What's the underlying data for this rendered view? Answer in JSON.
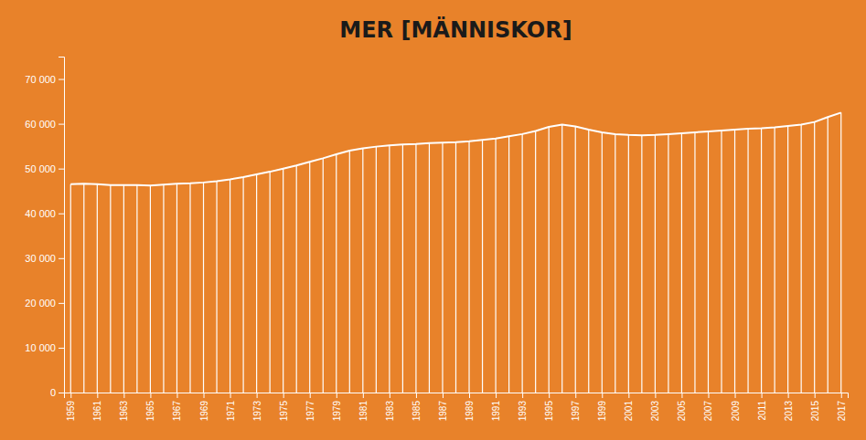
{
  "chart_data": {
    "type": "stem",
    "title": "MER [MÄNNISKOR]",
    "color": "#FFFFFF",
    "x": [
      1959,
      1960,
      1961,
      1962,
      1963,
      1964,
      1965,
      1966,
      1967,
      1968,
      1969,
      1970,
      1971,
      1972,
      1973,
      1974,
      1975,
      1976,
      1977,
      1978,
      1979,
      1980,
      1981,
      1982,
      1983,
      1984,
      1985,
      1986,
      1987,
      1988,
      1989,
      1990,
      1991,
      1992,
      1993,
      1994,
      1995,
      1996,
      1997,
      1998,
      1999,
      2000,
      2001,
      2002,
      2003,
      2004,
      2005,
      2006,
      2007,
      2008,
      2009,
      2010,
      2011,
      2012,
      2013,
      2014,
      2015,
      2016,
      2017
    ],
    "values": [
      46500,
      46600,
      46500,
      46300,
      46300,
      46300,
      46200,
      46400,
      46600,
      46700,
      46900,
      47200,
      47600,
      48100,
      48700,
      49300,
      50000,
      50700,
      51500,
      52300,
      53200,
      54000,
      54500,
      54900,
      55200,
      55400,
      55500,
      55700,
      55800,
      55900,
      56100,
      56400,
      56700,
      57200,
      57700,
      58400,
      59300,
      59800,
      59400,
      58700,
      58100,
      57700,
      57500,
      57400,
      57500,
      57700,
      57900,
      58100,
      58300,
      58500,
      58700,
      58900,
      59000,
      59200,
      59500,
      59800,
      60400,
      61500,
      62500
    ],
    "xlim": [
      1958.5,
      2017.5
    ],
    "xticks": [
      1959,
      1961,
      1963,
      1965,
      1967,
      1969,
      1971,
      1973,
      1975,
      1977,
      1979,
      1981,
      1983,
      1985,
      1987,
      1989,
      1991,
      1993,
      1995,
      1997,
      1999,
      2001,
      2003,
      2005,
      2007,
      2009,
      2011,
      2013,
      2015,
      2017
    ],
    "ylim": [
      0,
      75000
    ],
    "yticks": [
      0,
      {
        "value": 10000,
        "label": "10 000"
      },
      {
        "value": 20000,
        "label": "20 000"
      },
      {
        "value": 30000,
        "label": "30 000"
      },
      {
        "value": 40000,
        "label": "40 000"
      },
      {
        "value": 50000,
        "label": "50 000"
      },
      {
        "value": 60000,
        "label": "60 000"
      },
      {
        "value": 70000,
        "label": "70 000"
      }
    ],
    "grid": false
  }
}
